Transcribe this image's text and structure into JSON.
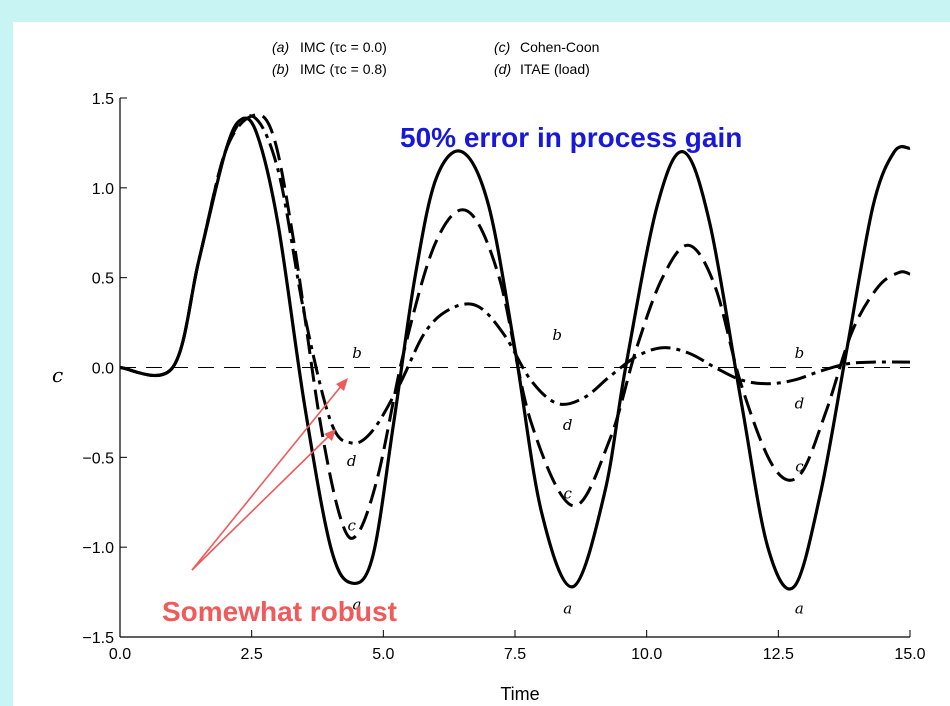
{
  "chart_data": {
    "type": "line",
    "xlabel": "Time",
    "ylabel": "c",
    "xlim": [
      0.0,
      15.0
    ],
    "ylim": [
      -1.5,
      1.5
    ],
    "x_ticks": [
      "0.0",
      "2.5",
      "5.0",
      "7.5",
      "10.0",
      "12.5",
      "15.0"
    ],
    "y_ticks": [
      "1.5",
      "1.0",
      "0.5",
      "0.0",
      "−0.5",
      "−1.0",
      "−1.5"
    ],
    "legend": {
      "a_tag": "(a)",
      "a_text": "IMC (τc = 0.0)",
      "b_tag": "(b)",
      "b_text": "IMC (τc = 0.8)",
      "c_tag": "(c)",
      "c_text": "Cohen-Coon",
      "d_tag": "(d)",
      "d_text": "ITAE (load)"
    },
    "series": [
      {
        "name": "a",
        "x": [
          0.0,
          1.0,
          1.5,
          2.0,
          2.3,
          2.6,
          3.0,
          3.5,
          4.0,
          4.4,
          4.8,
          5.2,
          5.6,
          6.0,
          6.5,
          7.0,
          7.5,
          8.0,
          8.6,
          9.2,
          9.6,
          10.2,
          10.7,
          11.2,
          11.8,
          12.3,
          12.8,
          13.3,
          13.8,
          14.3,
          14.7,
          15.0
        ],
        "y": [
          0.0,
          0.0,
          0.6,
          1.2,
          1.38,
          1.3,
          0.8,
          -0.2,
          -1.0,
          -1.2,
          -1.05,
          -0.3,
          0.5,
          1.05,
          1.2,
          0.9,
          0.1,
          -0.8,
          -1.22,
          -0.7,
          0.0,
          0.9,
          1.2,
          0.8,
          -0.2,
          -1.0,
          -1.22,
          -0.7,
          0.1,
          0.9,
          1.2,
          1.22
        ]
      },
      {
        "name": "b",
        "x": [
          0.0,
          1.0,
          1.5,
          2.0,
          2.4,
          2.8,
          3.3,
          3.8,
          4.3,
          5.0,
          5.8,
          6.5,
          7.2,
          7.9,
          8.5,
          9.2,
          10.0,
          10.8,
          11.7,
          12.6,
          13.5,
          14.3,
          15.0
        ],
        "y": [
          0.0,
          0.0,
          0.0,
          0.0,
          0.0,
          0.0,
          0.0,
          0.0,
          0.0,
          0.0,
          0.0,
          0.0,
          0.0,
          0.0,
          0.0,
          0.0,
          0.0,
          0.0,
          0.0,
          0.0,
          0.0,
          0.0,
          0.0
        ]
      },
      {
        "name": "c",
        "x": [
          0.0,
          1.0,
          1.5,
          2.0,
          2.5,
          2.9,
          3.3,
          3.8,
          4.2,
          4.5,
          4.9,
          5.4,
          6.0,
          6.6,
          7.2,
          7.8,
          8.6,
          9.3,
          9.8,
          10.3,
          10.8,
          11.3,
          11.8,
          12.4,
          12.9,
          13.4,
          13.9,
          14.4,
          14.8,
          15.0
        ],
        "y": [
          0.0,
          0.0,
          0.6,
          1.2,
          1.4,
          1.3,
          0.7,
          -0.3,
          -0.85,
          -0.93,
          -0.6,
          0.1,
          0.7,
          0.87,
          0.5,
          -0.3,
          -0.77,
          -0.4,
          0.1,
          0.5,
          0.68,
          0.45,
          -0.1,
          -0.55,
          -0.6,
          -0.25,
          0.2,
          0.45,
          0.53,
          0.52
        ]
      },
      {
        "name": "d",
        "x": [
          0.0,
          1.0,
          1.5,
          2.0,
          2.5,
          3.0,
          3.5,
          4.0,
          4.4,
          4.8,
          5.3,
          5.8,
          6.3,
          6.8,
          7.3,
          7.8,
          8.3,
          8.8,
          9.3,
          9.8,
          10.3,
          10.8,
          11.3,
          11.8,
          12.3,
          12.8,
          13.3,
          13.8,
          14.3,
          15.0
        ],
        "y": [
          0.0,
          0.0,
          0.6,
          1.2,
          1.4,
          1.1,
          0.3,
          -0.3,
          -0.42,
          -0.35,
          -0.1,
          0.2,
          0.33,
          0.34,
          0.18,
          -0.07,
          -0.2,
          -0.17,
          -0.05,
          0.06,
          0.11,
          0.08,
          0.0,
          -0.07,
          -0.09,
          -0.07,
          -0.02,
          0.02,
          0.03,
          0.03
        ]
      }
    ],
    "curve_labels": [
      {
        "text": "b",
        "x": 4.5,
        "y": 0.08
      },
      {
        "text": "d",
        "x": 4.4,
        "y": -0.52
      },
      {
        "text": "c",
        "x": 4.4,
        "y": -0.88
      },
      {
        "text": "a",
        "x": 4.5,
        "y": -1.32
      },
      {
        "text": "b",
        "x": 8.3,
        "y": 0.18
      },
      {
        "text": "d",
        "x": 8.5,
        "y": -0.32
      },
      {
        "text": "c",
        "x": 8.5,
        "y": -0.7
      },
      {
        "text": "a",
        "x": 8.5,
        "y": -1.34
      },
      {
        "text": "b",
        "x": 12.9,
        "y": 0.08
      },
      {
        "text": "d",
        "x": 12.9,
        "y": -0.2
      },
      {
        "text": "c",
        "x": 12.9,
        "y": -0.55
      },
      {
        "text": "a",
        "x": 12.9,
        "y": -1.34
      }
    ],
    "annotations": {
      "gain_error": "50% error in process gain",
      "robust": "Somewhat robust"
    }
  },
  "colors": {
    "band": "#c8f4f4",
    "annotation_blue": "#1818d8",
    "annotation_red": "#f05a5a",
    "axis": "#000000"
  }
}
